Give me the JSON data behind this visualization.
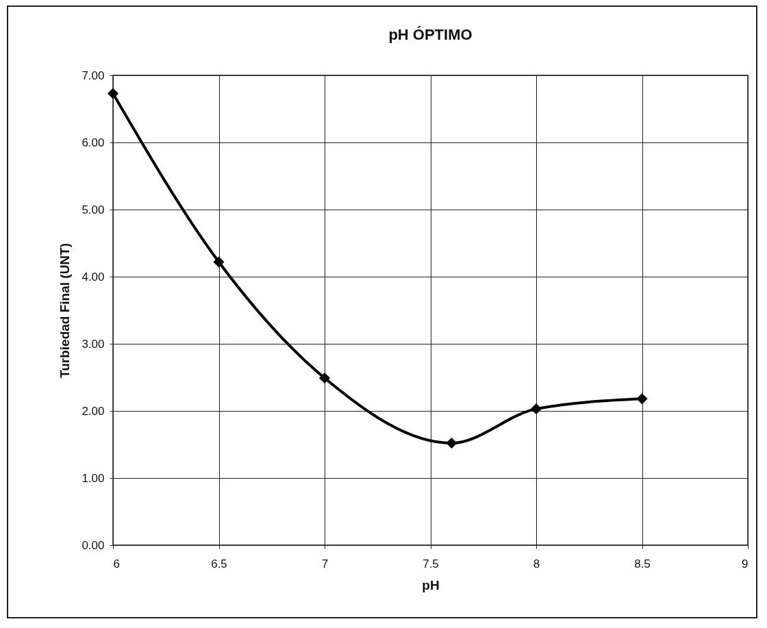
{
  "chart_data": {
    "type": "line",
    "title": "pH ÓPTIMO",
    "xlabel": "pH",
    "ylabel": "Turbiedad Final (UNT)",
    "x": [
      6,
      6.5,
      7,
      7.6,
      8,
      8.5
    ],
    "series": [
      {
        "color": "#000000",
        "values": [
          6.73,
          4.22,
          2.49,
          1.52,
          2.03,
          2.18
        ]
      }
    ],
    "xlim": [
      6,
      9
    ],
    "xticks": [
      6,
      6.5,
      7,
      7.5,
      8,
      8.5,
      9
    ],
    "ylim": [
      0,
      7
    ],
    "yticks": [
      {
        "value": 0,
        "label": "0.00"
      },
      {
        "value": 1,
        "label": "1.00"
      },
      {
        "value": 2,
        "label": "2.00"
      },
      {
        "value": 3,
        "label": "3.00"
      },
      {
        "value": 4,
        "label": "4.00"
      },
      {
        "value": 5,
        "label": "5.00"
      },
      {
        "value": 6,
        "label": "6.00"
      },
      {
        "value": 7,
        "label": "7.00"
      }
    ],
    "grid": true,
    "marker": "diamond",
    "line_style": "solid"
  }
}
